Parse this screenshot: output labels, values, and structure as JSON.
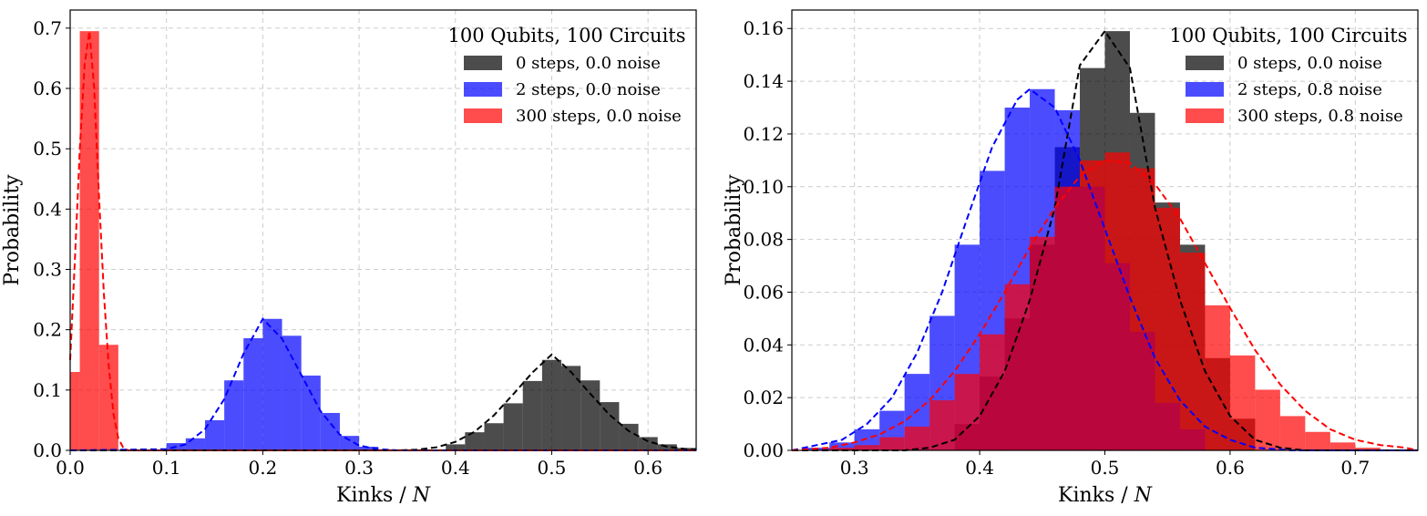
{
  "chart_data": [
    {
      "type": "histogram",
      "ylabel": "Probability",
      "xlabel_text": "Kinks / ",
      "xlabel_math": "N",
      "xlim": [
        0.0,
        0.65
      ],
      "ylim": [
        0.0,
        0.73
      ],
      "xticks": [
        "0.0",
        "0.1",
        "0.2",
        "0.3",
        "0.4",
        "0.5",
        "0.6"
      ],
      "yticks": [
        "0.0",
        "0.1",
        "0.2",
        "0.3",
        "0.4",
        "0.5",
        "0.6",
        "0.7"
      ],
      "xtick_values": [
        0.0,
        0.1,
        0.2,
        0.3,
        0.4,
        0.5,
        0.6
      ],
      "ytick_values": [
        0.0,
        0.1,
        0.2,
        0.3,
        0.4,
        0.5,
        0.6,
        0.7
      ],
      "grid": true,
      "legend": {
        "title": "100 Qubits, 100 Circuits",
        "placement": "top-right",
        "entries": [
          "0 steps, 0.0 noise",
          "2 steps, 0.0 noise",
          "300 steps, 0.0 noise"
        ]
      },
      "series": [
        {
          "name": "0 steps, 0.0 noise",
          "color": "#000000",
          "opacity": 0.7,
          "fit_color": "#000000",
          "bins": [
            [
              0.39,
              0.41,
              0.01
            ],
            [
              0.41,
              0.43,
              0.03
            ],
            [
              0.43,
              0.45,
              0.045
            ],
            [
              0.45,
              0.47,
              0.078
            ],
            [
              0.47,
              0.49,
              0.115
            ],
            [
              0.49,
              0.51,
              0.15
            ],
            [
              0.51,
              0.53,
              0.14
            ],
            [
              0.53,
              0.55,
              0.116
            ],
            [
              0.55,
              0.57,
              0.08
            ],
            [
              0.57,
              0.59,
              0.044
            ],
            [
              0.59,
              0.61,
              0.022
            ],
            [
              0.61,
              0.63,
              0.01
            ],
            [
              0.63,
              0.65,
              0.004
            ]
          ],
          "fit": [
            [
              0.0,
              0.0
            ],
            [
              0.34,
              0.0
            ],
            [
              0.36,
              0.001
            ],
            [
              0.38,
              0.005
            ],
            [
              0.4,
              0.014
            ],
            [
              0.42,
              0.031
            ],
            [
              0.44,
              0.058
            ],
            [
              0.46,
              0.093
            ],
            [
              0.48,
              0.129
            ],
            [
              0.5,
              0.159
            ],
            [
              0.52,
              0.13
            ],
            [
              0.54,
              0.094
            ],
            [
              0.56,
              0.059
            ],
            [
              0.58,
              0.032
            ],
            [
              0.6,
              0.015
            ],
            [
              0.62,
              0.006
            ],
            [
              0.64,
              0.002
            ],
            [
              0.65,
              0.001
            ]
          ]
        },
        {
          "name": "2 steps, 0.0 noise",
          "color": "#0000ff",
          "opacity": 0.7,
          "fit_color": "#0000ff",
          "bins": [
            [
              0.1,
              0.12,
              0.012
            ],
            [
              0.12,
              0.14,
              0.02
            ],
            [
              0.14,
              0.16,
              0.05
            ],
            [
              0.16,
              0.18,
              0.116
            ],
            [
              0.18,
              0.2,
              0.186
            ],
            [
              0.2,
              0.22,
              0.218
            ],
            [
              0.22,
              0.24,
              0.19
            ],
            [
              0.24,
              0.26,
              0.124
            ],
            [
              0.26,
              0.28,
              0.062
            ],
            [
              0.28,
              0.3,
              0.024
            ],
            [
              0.3,
              0.32,
              0.006
            ]
          ],
          "fit": [
            [
              0.0,
              0.0
            ],
            [
              0.1,
              0.002
            ],
            [
              0.12,
              0.01
            ],
            [
              0.14,
              0.035
            ],
            [
              0.16,
              0.085
            ],
            [
              0.18,
              0.16
            ],
            [
              0.2,
              0.218
            ],
            [
              0.22,
              0.185
            ],
            [
              0.24,
              0.125
            ],
            [
              0.26,
              0.065
            ],
            [
              0.28,
              0.026
            ],
            [
              0.3,
              0.008
            ],
            [
              0.32,
              0.002
            ],
            [
              0.34,
              0.0
            ],
            [
              0.65,
              0.0
            ]
          ]
        },
        {
          "name": "300 steps, 0.0 noise",
          "color": "#ff0000",
          "opacity": 0.7,
          "fit_color": "#ff0000",
          "bins": [
            [
              0.0,
              0.01,
              0.13
            ],
            [
              0.01,
              0.03,
              0.695
            ],
            [
              0.03,
              0.05,
              0.175
            ]
          ],
          "fit": [
            [
              0.0,
              0.15
            ],
            [
              0.005,
              0.32
            ],
            [
              0.01,
              0.5
            ],
            [
              0.015,
              0.64
            ],
            [
              0.02,
              0.695
            ],
            [
              0.025,
              0.6
            ],
            [
              0.03,
              0.42
            ],
            [
              0.035,
              0.26
            ],
            [
              0.04,
              0.14
            ],
            [
              0.045,
              0.06
            ],
            [
              0.05,
              0.02
            ],
            [
              0.055,
              0.005
            ],
            [
              0.06,
              0.0
            ],
            [
              0.65,
              0.0
            ]
          ]
        }
      ]
    },
    {
      "type": "histogram",
      "ylabel": "Probability",
      "xlabel_text": "Kinks / ",
      "xlabel_math": "N",
      "xlim": [
        0.25,
        0.75
      ],
      "ylim": [
        0.0,
        0.167
      ],
      "xticks": [
        "0.3",
        "0.4",
        "0.5",
        "0.6",
        "0.7"
      ],
      "yticks": [
        "0.00",
        "0.02",
        "0.04",
        "0.06",
        "0.08",
        "0.10",
        "0.12",
        "0.14",
        "0.16"
      ],
      "xtick_values": [
        0.3,
        0.4,
        0.5,
        0.6,
        0.7
      ],
      "ytick_values": [
        0.0,
        0.02,
        0.04,
        0.06,
        0.08,
        0.1,
        0.12,
        0.14,
        0.16
      ],
      "grid": true,
      "legend": {
        "title": "100 Qubits, 100 Circuits",
        "placement": "top-right",
        "entries": [
          "0 steps, 0.0 noise",
          "2 steps, 0.8 noise",
          "300 steps, 0.8 noise"
        ]
      },
      "series": [
        {
          "name": "0 steps, 0.0 noise",
          "color": "#000000",
          "opacity": 0.7,
          "fit_color": "#000000",
          "bins": [
            [
              0.38,
              0.4,
              0.01
            ],
            [
              0.4,
              0.42,
              0.028
            ],
            [
              0.42,
              0.44,
              0.05
            ],
            [
              0.44,
              0.46,
              0.078
            ],
            [
              0.46,
              0.48,
              0.115
            ],
            [
              0.48,
              0.5,
              0.145
            ],
            [
              0.5,
              0.52,
              0.159
            ],
            [
              0.52,
              0.54,
              0.128
            ],
            [
              0.54,
              0.56,
              0.094
            ],
            [
              0.56,
              0.58,
              0.078
            ],
            [
              0.58,
              0.6,
              0.035
            ],
            [
              0.6,
              0.62,
              0.012
            ]
          ],
          "fit": [
            [
              0.25,
              0.0
            ],
            [
              0.34,
              0.0
            ],
            [
              0.36,
              0.001
            ],
            [
              0.38,
              0.004
            ],
            [
              0.4,
              0.013
            ],
            [
              0.42,
              0.03
            ],
            [
              0.44,
              0.057
            ],
            [
              0.46,
              0.092
            ],
            [
              0.48,
              0.146
            ],
            [
              0.5,
              0.159
            ],
            [
              0.52,
              0.145
            ],
            [
              0.54,
              0.092
            ],
            [
              0.56,
              0.057
            ],
            [
              0.58,
              0.03
            ],
            [
              0.6,
              0.013
            ],
            [
              0.62,
              0.004
            ],
            [
              0.64,
              0.001
            ],
            [
              0.66,
              0.0
            ],
            [
              0.75,
              0.0
            ]
          ]
        },
        {
          "name": "2 steps, 0.8 noise",
          "color": "#0000ff",
          "opacity": 0.7,
          "fit_color": "#0000ff",
          "bins": [
            [
              0.26,
              0.28,
              0.001
            ],
            [
              0.28,
              0.3,
              0.003
            ],
            [
              0.3,
              0.32,
              0.008
            ],
            [
              0.32,
              0.34,
              0.015
            ],
            [
              0.34,
              0.36,
              0.029
            ],
            [
              0.36,
              0.38,
              0.051
            ],
            [
              0.38,
              0.4,
              0.078
            ],
            [
              0.4,
              0.42,
              0.106
            ],
            [
              0.42,
              0.44,
              0.13
            ],
            [
              0.44,
              0.46,
              0.137
            ],
            [
              0.46,
              0.48,
              0.129
            ],
            [
              0.48,
              0.5,
              0.1
            ],
            [
              0.5,
              0.52,
              0.071
            ],
            [
              0.52,
              0.54,
              0.045
            ],
            [
              0.54,
              0.56,
              0.018
            ],
            [
              0.56,
              0.58,
              0.008
            ]
          ],
          "fit": [
            [
              0.25,
              0.0
            ],
            [
              0.27,
              0.002
            ],
            [
              0.29,
              0.004
            ],
            [
              0.31,
              0.01
            ],
            [
              0.33,
              0.02
            ],
            [
              0.35,
              0.037
            ],
            [
              0.37,
              0.06
            ],
            [
              0.39,
              0.088
            ],
            [
              0.41,
              0.115
            ],
            [
              0.43,
              0.133
            ],
            [
              0.44,
              0.137
            ],
            [
              0.46,
              0.13
            ],
            [
              0.48,
              0.11
            ],
            [
              0.5,
              0.084
            ],
            [
              0.52,
              0.058
            ],
            [
              0.54,
              0.035
            ],
            [
              0.56,
              0.019
            ],
            [
              0.58,
              0.009
            ],
            [
              0.6,
              0.004
            ],
            [
              0.62,
              0.001
            ],
            [
              0.65,
              0.0
            ],
            [
              0.75,
              0.0
            ]
          ]
        },
        {
          "name": "300 steps, 0.8 noise",
          "color": "#ff0000",
          "opacity": 0.7,
          "fit_color": "#ff0000",
          "bins": [
            [
              0.26,
              0.28,
              0.0
            ],
            [
              0.28,
              0.3,
              0.001
            ],
            [
              0.3,
              0.32,
              0.002
            ],
            [
              0.32,
              0.34,
              0.005
            ],
            [
              0.34,
              0.36,
              0.009
            ],
            [
              0.36,
              0.38,
              0.019
            ],
            [
              0.38,
              0.4,
              0.029
            ],
            [
              0.4,
              0.42,
              0.044
            ],
            [
              0.42,
              0.44,
              0.063
            ],
            [
              0.44,
              0.46,
              0.081
            ],
            [
              0.46,
              0.48,
              0.1
            ],
            [
              0.48,
              0.5,
              0.11
            ],
            [
              0.5,
              0.52,
              0.113
            ],
            [
              0.52,
              0.54,
              0.107
            ],
            [
              0.54,
              0.56,
              0.092
            ],
            [
              0.56,
              0.58,
              0.075
            ],
            [
              0.58,
              0.6,
              0.055
            ],
            [
              0.6,
              0.62,
              0.036
            ],
            [
              0.62,
              0.64,
              0.023
            ],
            [
              0.64,
              0.66,
              0.013
            ],
            [
              0.66,
              0.68,
              0.007
            ],
            [
              0.68,
              0.7,
              0.003
            ],
            [
              0.7,
              0.72,
              0.001
            ]
          ],
          "fit": [
            [
              0.25,
              0.0
            ],
            [
              0.28,
              0.001
            ],
            [
              0.3,
              0.003
            ],
            [
              0.32,
              0.006
            ],
            [
              0.34,
              0.011
            ],
            [
              0.36,
              0.019
            ],
            [
              0.38,
              0.03
            ],
            [
              0.4,
              0.044
            ],
            [
              0.42,
              0.06
            ],
            [
              0.44,
              0.077
            ],
            [
              0.46,
              0.092
            ],
            [
              0.48,
              0.104
            ],
            [
              0.5,
              0.11
            ],
            [
              0.52,
              0.109
            ],
            [
              0.54,
              0.101
            ],
            [
              0.56,
              0.088
            ],
            [
              0.58,
              0.071
            ],
            [
              0.6,
              0.054
            ],
            [
              0.62,
              0.038
            ],
            [
              0.64,
              0.025
            ],
            [
              0.66,
              0.015
            ],
            [
              0.68,
              0.008
            ],
            [
              0.7,
              0.004
            ],
            [
              0.72,
              0.002
            ],
            [
              0.74,
              0.001
            ],
            [
              0.75,
              0.0
            ]
          ]
        }
      ]
    }
  ]
}
